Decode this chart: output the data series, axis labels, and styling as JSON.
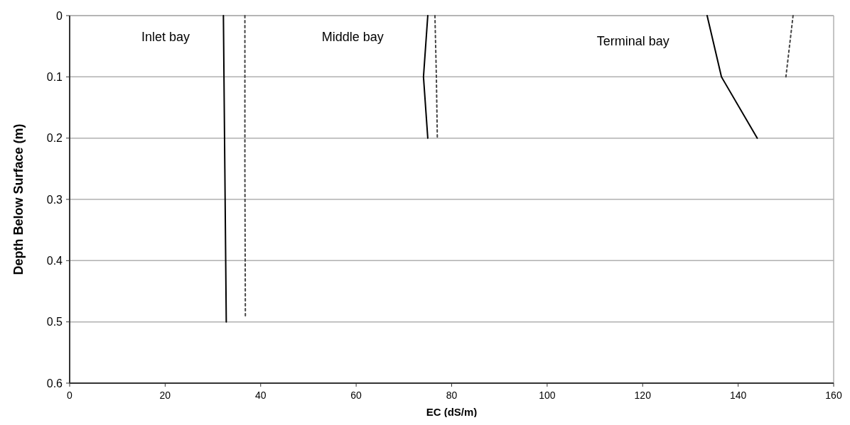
{
  "chart_data": {
    "type": "line",
    "xlabel": "EC (dS/m)",
    "ylabel": "Depth Below Surface (m)",
    "xlim": [
      0,
      160
    ],
    "xticks": [
      0,
      20,
      40,
      60,
      80,
      100,
      120,
      140,
      160
    ],
    "ylim": [
      0.6,
      0
    ],
    "yticks": [
      0,
      0.1,
      0.2,
      0.3,
      0.4,
      0.5,
      0.6
    ],
    "grid": "y",
    "series": [
      {
        "color": "#000000",
        "line_style": "solid",
        "x": [
          32.2,
          32.5,
          32.8
        ],
        "values": [
          0,
          0.25,
          0.5
        ]
      },
      {
        "color": "#444444",
        "line_style": "dotted",
        "x": [
          36.7,
          36.7,
          36.8
        ],
        "values": [
          0,
          0.25,
          0.49
        ]
      },
      {
        "color": "#000000",
        "line_style": "solid",
        "x": [
          75,
          74.1,
          75
        ],
        "values": [
          0,
          0.1,
          0.2
        ]
      },
      {
        "color": "#444444",
        "line_style": "dotted",
        "x": [
          76.5,
          76.8,
          77
        ],
        "values": [
          0,
          0.1,
          0.2
        ]
      },
      {
        "color": "#000000",
        "line_style": "solid",
        "x": [
          133.5,
          136.5,
          144
        ],
        "values": [
          0,
          0.1,
          0.2
        ]
      },
      {
        "color": "#444444",
        "line_style": "dotted",
        "x": [
          151.5,
          150
        ],
        "values": [
          0,
          0.1
        ]
      }
    ],
    "annotations": [
      "Inlet bay",
      "Middle bay",
      "Terminal bay"
    ]
  }
}
